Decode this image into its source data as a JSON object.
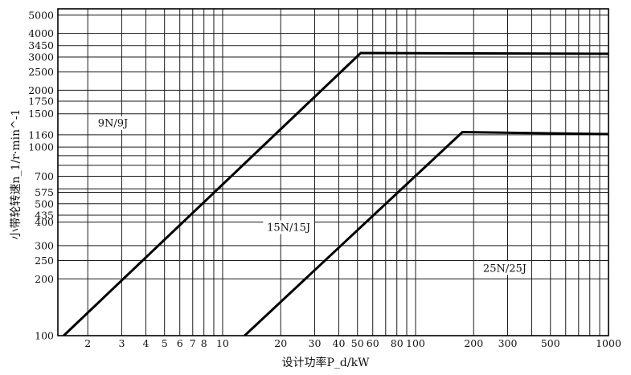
{
  "chart_data": {
    "type": "line",
    "xlabel": "设计功率P_d/kW",
    "ylabel": "小带轮转速n_1/r·min^-1",
    "x_scale": "log",
    "y_scale": "log",
    "xlim": [
      1.4,
      1000
    ],
    "ylim": [
      100,
      5400
    ],
    "x_ticks": [
      {
        "value": 2,
        "label": "2"
      },
      {
        "value": 3,
        "label": "3"
      },
      {
        "value": 4,
        "label": "4"
      },
      {
        "value": 5,
        "label": "5"
      },
      {
        "value": 6,
        "label": "6"
      },
      {
        "value": 7,
        "label": "7"
      },
      {
        "value": 8,
        "label": "8"
      },
      {
        "value": 10,
        "label": "10"
      },
      {
        "value": 20,
        "label": "20"
      },
      {
        "value": 30,
        "label": "30"
      },
      {
        "value": 40,
        "label": "40"
      },
      {
        "value": 50,
        "label": "50"
      },
      {
        "value": 60,
        "label": "60"
      },
      {
        "value": 80,
        "label": "80"
      },
      {
        "value": 100,
        "label": "100"
      },
      {
        "value": 200,
        "label": "200"
      },
      {
        "value": 300,
        "label": "300"
      },
      {
        "value": 500,
        "label": "500"
      },
      {
        "value": 1000,
        "label": "1000"
      }
    ],
    "x_gridlines": [
      2,
      3,
      4,
      5,
      6,
      7,
      8,
      9,
      10,
      20,
      30,
      40,
      50,
      60,
      70,
      80,
      90,
      100,
      200,
      300,
      400,
      500,
      600,
      700,
      800,
      900,
      1000
    ],
    "y_ticks": [
      {
        "value": 100,
        "label": "100"
      },
      {
        "value": 200,
        "label": "200"
      },
      {
        "value": 250,
        "label": "250"
      },
      {
        "value": 300,
        "label": "300"
      },
      {
        "value": 400,
        "label": "400"
      },
      {
        "value": 435,
        "label": "435"
      },
      {
        "value": 500,
        "label": "500"
      },
      {
        "value": 575,
        "label": "575"
      },
      {
        "value": 700,
        "label": "700"
      },
      {
        "value": 1000,
        "label": "1000"
      },
      {
        "value": 1160,
        "label": "1160"
      },
      {
        "value": 1500,
        "label": "1500"
      },
      {
        "value": 1750,
        "label": "1750"
      },
      {
        "value": 2000,
        "label": "2000"
      },
      {
        "value": 2500,
        "label": "2500"
      },
      {
        "value": 3000,
        "label": "3000"
      },
      {
        "value": 3450,
        "label": "3450"
      },
      {
        "value": 4000,
        "label": "4000"
      },
      {
        "value": 5000,
        "label": "5000"
      }
    ],
    "y_gridlines": [
      100,
      200,
      250,
      300,
      400,
      435,
      500,
      575,
      600,
      700,
      800,
      900,
      1000,
      1160,
      1500,
      1750,
      2000,
      2500,
      3000,
      3450,
      4000,
      5000
    ],
    "series": [
      {
        "name": "",
        "x": [
          1.5,
          52,
          1000
        ],
        "y": [
          100,
          3150,
          3120
        ]
      },
      {
        "name": "",
        "x": [
          13,
          175,
          1000
        ],
        "y": [
          100,
          1200,
          1170
        ]
      }
    ],
    "region_labels": [
      {
        "text": "9N/9J",
        "x": 2.7,
        "y": 1320
      },
      {
        "text": "15N/15J",
        "x": 22,
        "y": 370
      },
      {
        "text": "25N/25J",
        "x": 290,
        "y": 225
      }
    ],
    "grid": true,
    "legend": "none"
  }
}
